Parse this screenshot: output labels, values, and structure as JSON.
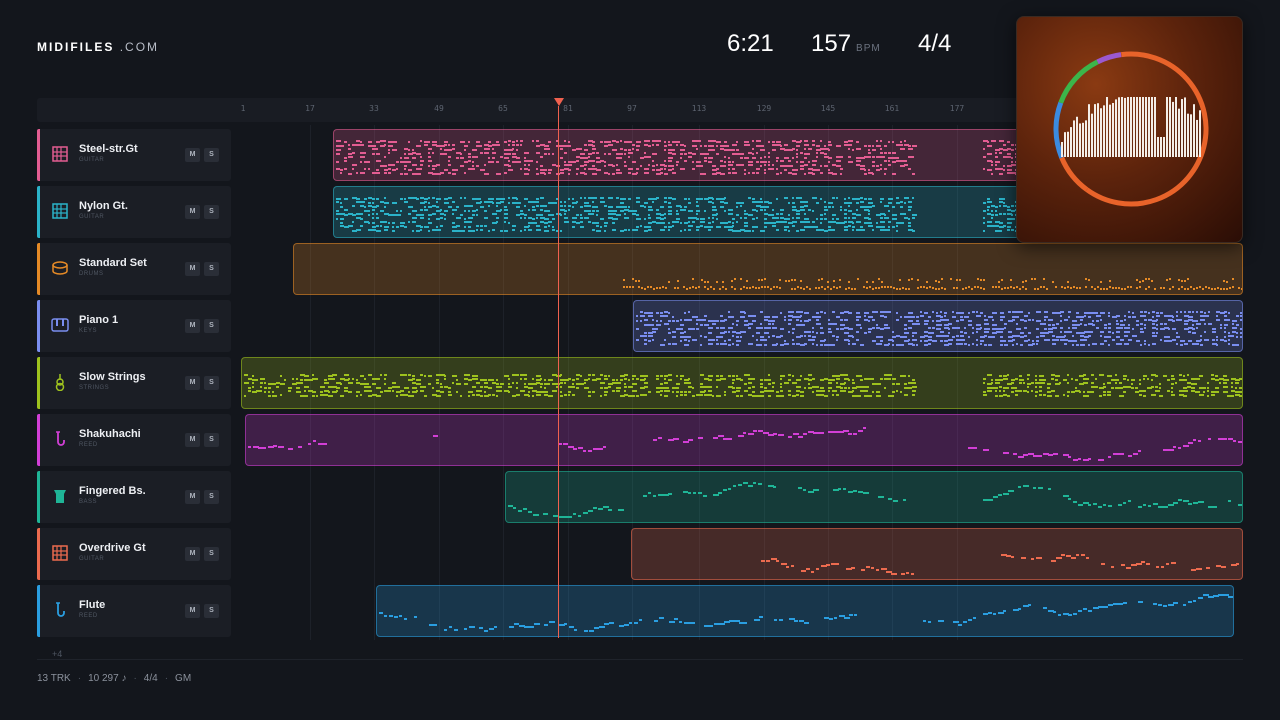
{
  "header": {
    "logo_bold": "MIDIFILES",
    "logo_light": ".COM",
    "time": "6:21",
    "bpm": "157",
    "bpm_unit": "BPM",
    "signature": "4/4"
  },
  "ruler": {
    "ticks": [
      "1",
      "17",
      "33",
      "49",
      "65",
      "81",
      "97",
      "113",
      "129",
      "145",
      "161",
      "177"
    ]
  },
  "playhead": {
    "bar": 81
  },
  "tracks": [
    {
      "name": "Steel-str.Gt",
      "category": "GUITAR",
      "icon": "guitar-fret-icon",
      "color": "#e35d92",
      "mute": "M",
      "solo": "S"
    },
    {
      "name": "Nylon Gt.",
      "category": "GUITAR",
      "icon": "guitar-fret-icon",
      "color": "#2bb3c9",
      "mute": "M",
      "solo": "S"
    },
    {
      "name": "Standard Set",
      "category": "DRUMS",
      "icon": "drum-icon",
      "color": "#e58a26",
      "mute": "M",
      "solo": "S"
    },
    {
      "name": "Piano 1",
      "category": "KEYS",
      "icon": "piano-keys-icon",
      "color": "#7a8ef0",
      "mute": "M",
      "solo": "S"
    },
    {
      "name": "Slow Strings",
      "category": "STRINGS",
      "icon": "violin-icon",
      "color": "#9ec21e",
      "mute": "M",
      "solo": "S"
    },
    {
      "name": "Shakuhachi",
      "category": "REED",
      "icon": "saxophone-icon",
      "color": "#d23fd6",
      "mute": "M",
      "solo": "S"
    },
    {
      "name": "Fingered Bs.",
      "category": "BASS",
      "icon": "bass-icon",
      "color": "#1fb597",
      "mute": "M",
      "solo": "S"
    },
    {
      "name": "Overdrive Gt",
      "category": "GUITAR",
      "icon": "guitar-fret-icon",
      "color": "#ec6b4f",
      "mute": "M",
      "solo": "S"
    },
    {
      "name": "Flute",
      "category": "REED",
      "icon": "saxophone-icon",
      "color": "#2a9ee0",
      "mute": "M",
      "solo": "S"
    }
  ],
  "more_tracks": "+4",
  "footer": {
    "tracks": "13 TRK",
    "notes": "10 297 ♪",
    "signature": "4/4",
    "standard": "GM"
  },
  "cover": {
    "ring_colors": [
      "#e8632a",
      "#3b8be0",
      "#3cb54a",
      "#9b59d0"
    ]
  }
}
